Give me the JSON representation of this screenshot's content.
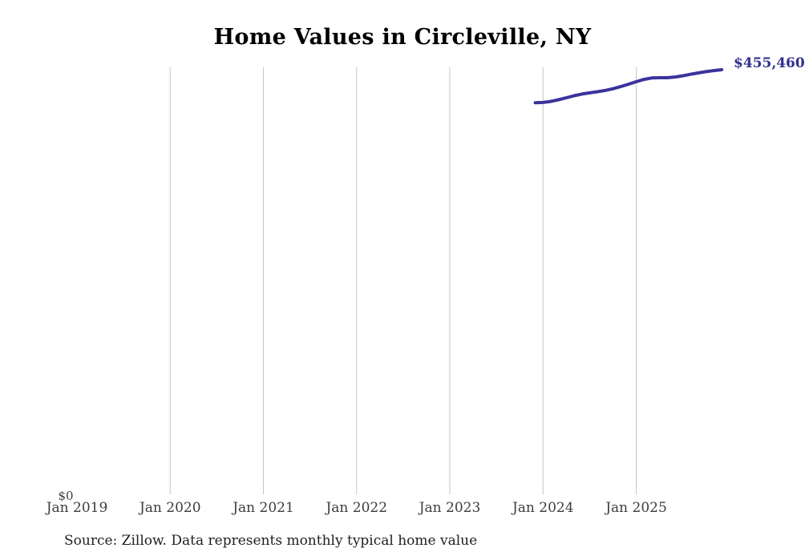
{
  "page": {
    "title": "Home Values in Circleville, NY",
    "source_note": "Source: Zillow. Data represents monthly typical home value"
  },
  "chart_data": {
    "type": "line",
    "title": "Home Values in Circleville, NY",
    "series_name": "Monthly typical home value",
    "x": [
      "2023-12",
      "2024-01",
      "2024-02",
      "2024-03",
      "2024-04",
      "2024-05",
      "2024-06",
      "2024-07",
      "2024-08",
      "2024-09",
      "2024-10",
      "2024-11",
      "2024-12",
      "2025-01",
      "2025-02",
      "2025-03",
      "2025-04",
      "2025-05",
      "2025-06",
      "2025-07",
      "2025-08",
      "2025-09",
      "2025-10",
      "2025-11",
      "2025-12"
    ],
    "values": [
      419900,
      420300,
      421400,
      423200,
      425300,
      427500,
      429300,
      430600,
      431800,
      433200,
      435000,
      437300,
      439900,
      442500,
      445000,
      446600,
      446800,
      446800,
      447600,
      448900,
      450500,
      452000,
      453400,
      454500,
      455460
    ],
    "end_label": "$455,460",
    "y_zero_label": "$0",
    "x_tick_labels": [
      "Jan 2019",
      "Jan 2020",
      "Jan 2021",
      "Jan 2022",
      "Jan 2023",
      "Jan 2024",
      "Jan 2025"
    ],
    "x_tick_gridline": [
      false,
      true,
      true,
      true,
      true,
      true,
      true
    ],
    "xlabel": "",
    "ylabel": "",
    "ylim": [
      0,
      458000
    ],
    "grid": "vertical-only",
    "legend": "none",
    "line_color": "#3b339c",
    "grid_color": "#c6c6c6"
  }
}
